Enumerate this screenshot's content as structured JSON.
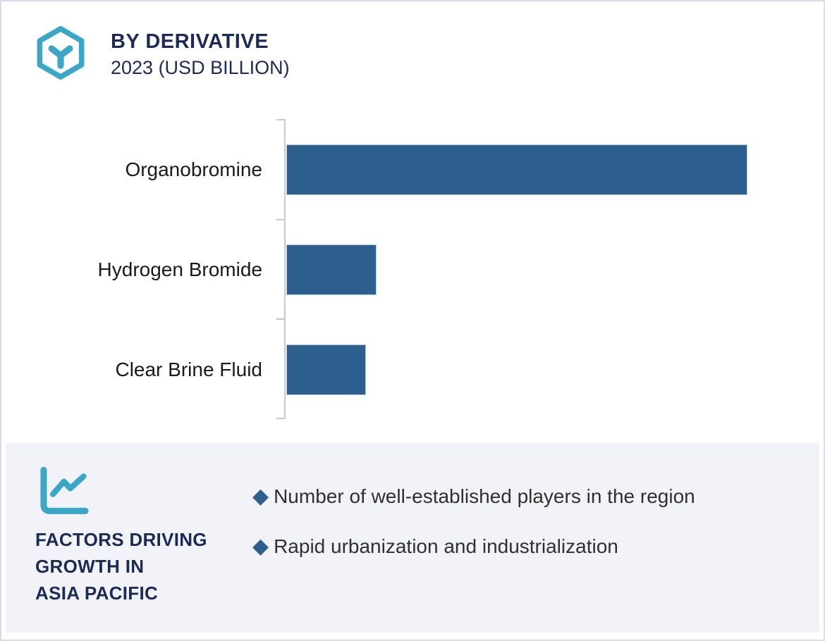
{
  "header": {
    "title": "BY DERIVATIVE",
    "subtitle": "2023 (USD BILLION)"
  },
  "icons": {
    "logo": "hexagon-molecule-icon",
    "factors_panel": "line-chart-icon",
    "bullet_glyph": "◆"
  },
  "colors": {
    "accent_teal": "#3BA6C5",
    "navy": "#1B2B56",
    "bar_blue": "#2C5E8E",
    "panel_bg": "#F2F3F8",
    "axis_gray": "#C6C8CA"
  },
  "chart_data": {
    "type": "bar",
    "orientation": "horizontal",
    "title": "BY DERIVATIVE",
    "subtitle": "2023 (USD BILLION)",
    "categories": [
      "Organobromine",
      "Hydrogen Bromide",
      "Clear Brine Fluid"
    ],
    "values_relative": [
      1.0,
      0.196,
      0.173
    ],
    "xlim": [
      0,
      1.156
    ],
    "grid": false,
    "legend": false,
    "value_labels_shown": false,
    "note_units": "USD Billion, 2023; no numeric axis labels shown in source"
  },
  "factors": {
    "heading_line1": "FACTORS DRIVING",
    "heading_line2": "GROWTH IN",
    "heading_line3": "ASIA PACIFIC",
    "bullets": [
      {
        "text": "Number of well-established players in the region"
      },
      {
        "text": "Rapid urbanization and industrialization"
      }
    ]
  }
}
